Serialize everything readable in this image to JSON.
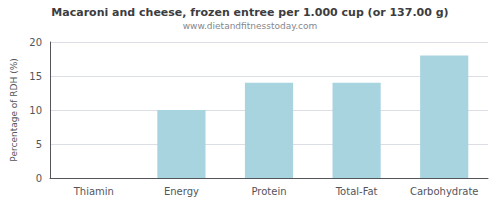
{
  "chart_data": {
    "type": "bar",
    "title": "Macaroni and cheese, frozen entree per 1.000 cup (or 137.00 g)",
    "subtitle": "www.dietandfitnesstoday.com",
    "categories": [
      "Thiamin",
      "Energy",
      "Protein",
      "Total-Fat",
      "Carbohydrate"
    ],
    "values": [
      0,
      10,
      14,
      14,
      18
    ],
    "color": "#a8d4e0",
    "ylabel": "Percentage of RDH (%)",
    "ylim": [
      0,
      20
    ],
    "yticks": [
      0,
      5,
      10,
      15,
      20
    ],
    "grid": true
  }
}
